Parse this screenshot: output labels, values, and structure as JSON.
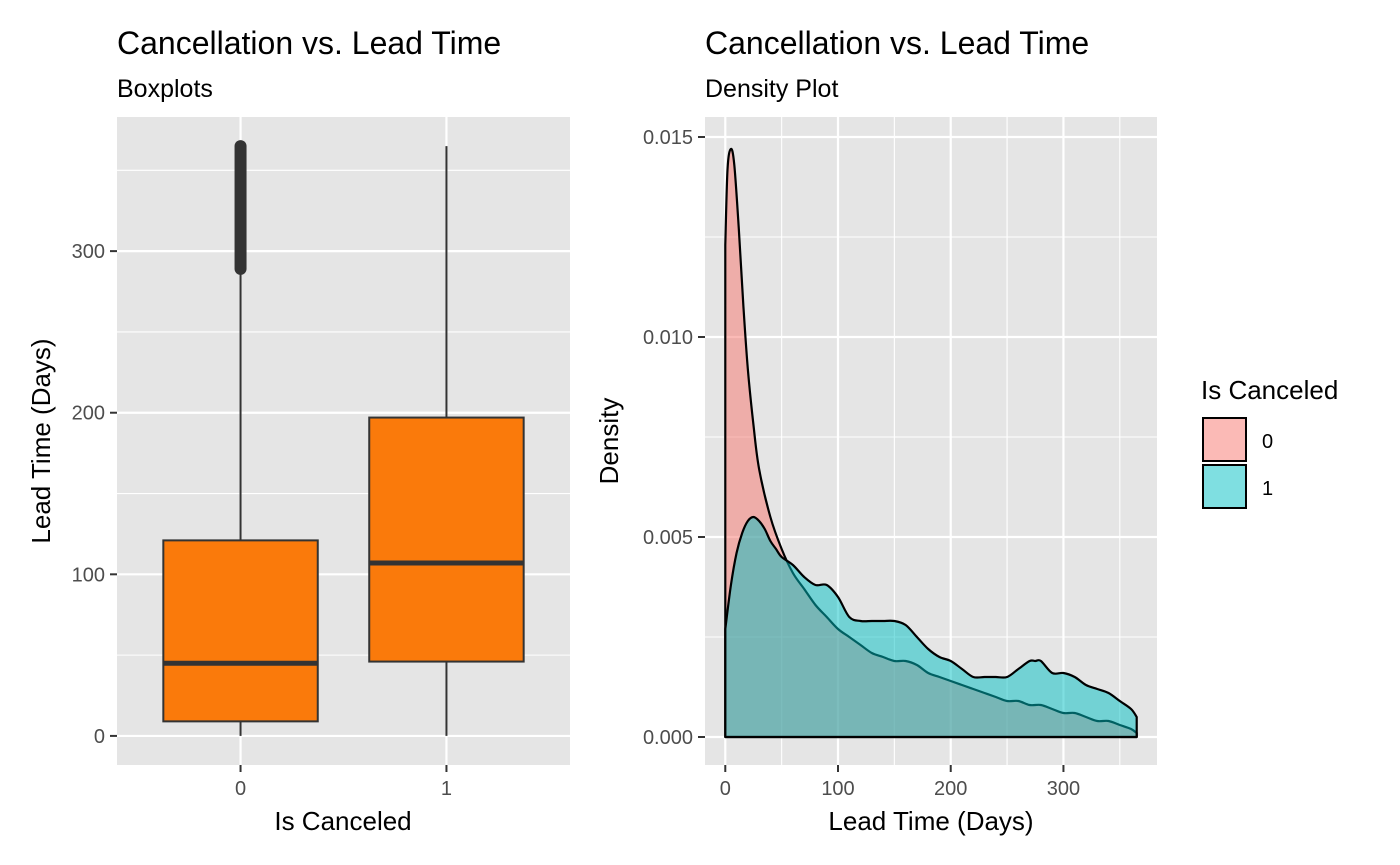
{
  "colors": {
    "panel_bg": "#e5e5e5",
    "grid": "#ffffff",
    "box_fill": "#fa7a0b",
    "box_line": "#333333",
    "tick": "#4d4d4d",
    "series0": "#f8766d",
    "series1": "#00bfc4"
  },
  "chart_data": [
    {
      "type": "boxplot",
      "title": "Cancellation vs. Lead Time",
      "subtitle": "Boxplots",
      "xlabel": "Is Canceled",
      "ylabel": "Lead Time (Days)",
      "categories": [
        "0",
        "1"
      ],
      "ylim": [
        -18,
        383
      ],
      "yticks": [
        0,
        100,
        200,
        300
      ],
      "ytick_labels": [
        "0",
        "100",
        "200",
        "300"
      ],
      "boxes": [
        {
          "category": "0",
          "min": 0,
          "q1": 9,
          "median": 45,
          "q3": 121,
          "max": 288,
          "outliers_from": 289,
          "outliers_to": 365
        },
        {
          "category": "1",
          "min": 0,
          "q1": 46,
          "median": 107,
          "q3": 197,
          "max": 365
        }
      ]
    },
    {
      "type": "area",
      "title": "Cancellation vs. Lead Time",
      "subtitle": "Density Plot",
      "xlabel": "Lead Time (Days)",
      "ylabel": "Density",
      "xlim": [
        -18,
        383
      ],
      "ylim": [
        -0.0007,
        0.0155
      ],
      "xticks": [
        0,
        100,
        200,
        300
      ],
      "xtick_labels": [
        "0",
        "100",
        "200",
        "300"
      ],
      "yticks": [
        0,
        0.005,
        0.01,
        0.015
      ],
      "ytick_labels": [
        "0.000",
        "0.005",
        "0.010",
        "0.015"
      ],
      "legend": {
        "title": "Is Canceled",
        "position": "right",
        "entries": [
          "0",
          "1"
        ]
      },
      "series": [
        {
          "name": "0",
          "x": [
            0,
            2,
            5,
            8,
            12,
            16,
            20,
            25,
            30,
            40,
            50,
            60,
            70,
            80,
            90,
            100,
            110,
            120,
            130,
            140,
            150,
            160,
            170,
            180,
            190,
            200,
            210,
            220,
            230,
            240,
            250,
            260,
            270,
            280,
            290,
            300,
            310,
            320,
            330,
            340,
            350,
            360,
            365
          ],
          "y": [
            0.0123,
            0.0142,
            0.0147,
            0.0143,
            0.0127,
            0.0108,
            0.0092,
            0.0078,
            0.0067,
            0.0055,
            0.0047,
            0.0041,
            0.0037,
            0.0033,
            0.003,
            0.0027,
            0.0025,
            0.0023,
            0.0021,
            0.002,
            0.0019,
            0.0019,
            0.0018,
            0.0016,
            0.0015,
            0.0014,
            0.0013,
            0.0012,
            0.0011,
            0.001,
            0.0009,
            0.0009,
            0.0008,
            0.0008,
            0.0007,
            0.0006,
            0.0006,
            0.0005,
            0.0004,
            0.0004,
            0.0003,
            0.0002,
            0.0001
          ]
        },
        {
          "name": "1",
          "x": [
            0,
            5,
            10,
            15,
            20,
            25,
            30,
            35,
            40,
            45,
            50,
            60,
            70,
            80,
            90,
            100,
            110,
            120,
            130,
            140,
            150,
            160,
            170,
            180,
            190,
            200,
            210,
            220,
            230,
            240,
            250,
            260,
            270,
            275,
            280,
            290,
            300,
            310,
            320,
            330,
            340,
            350,
            360,
            365
          ],
          "y": [
            0.0027,
            0.0038,
            0.0046,
            0.0051,
            0.0054,
            0.0055,
            0.0054,
            0.0052,
            0.0049,
            0.0047,
            0.0045,
            0.0043,
            0.004,
            0.0038,
            0.0038,
            0.0035,
            0.003,
            0.0029,
            0.0029,
            0.0029,
            0.0029,
            0.0028,
            0.0025,
            0.0022,
            0.002,
            0.0019,
            0.0017,
            0.0015,
            0.0015,
            0.0015,
            0.0015,
            0.0017,
            0.0019,
            0.0019,
            0.0019,
            0.0016,
            0.0016,
            0.0015,
            0.0013,
            0.0012,
            0.0011,
            0.0009,
            0.0007,
            0.0005
          ]
        }
      ]
    }
  ]
}
